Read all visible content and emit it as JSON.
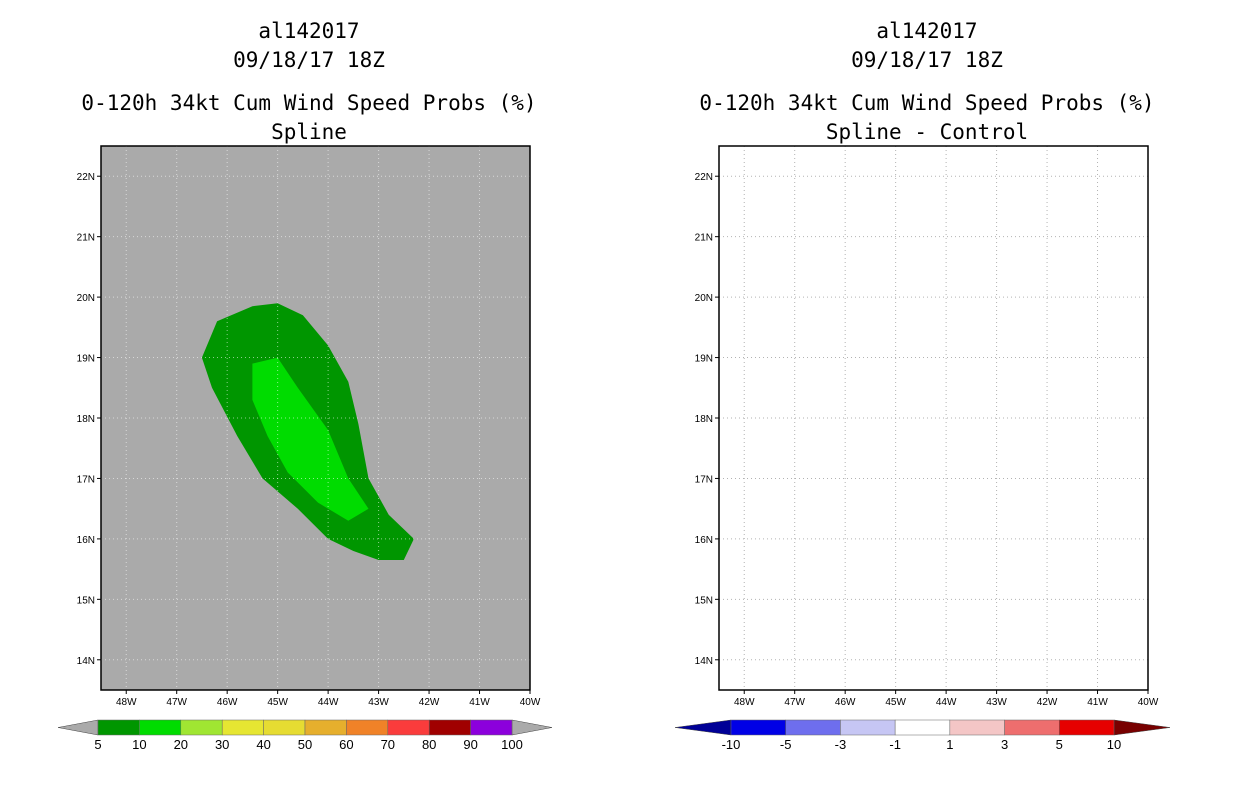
{
  "chart_data": [
    {
      "type": "filled-contour-map",
      "storm_id": "al142017",
      "datetime": "09/18/17 18Z",
      "title": "0-120h 34kt Cum Wind Speed Probs (%)",
      "subtitle": "Spline",
      "background_color": "#aaaaaa",
      "x_ticks": [
        "48W",
        "47W",
        "46W",
        "45W",
        "44W",
        "43W",
        "42W",
        "41W",
        "40W"
      ],
      "y_ticks": [
        "22N",
        "21N",
        "20N",
        "19N",
        "18N",
        "17N",
        "16N",
        "15N",
        "14N"
      ],
      "lon_range": [
        -48.5,
        -40
      ],
      "lat_range": [
        13.5,
        22.5
      ],
      "grid": true,
      "contours": [
        {
          "level": "5-10%",
          "color": "#009600",
          "lonlat": [
            [
              -46.2,
              19.6
            ],
            [
              -45.5,
              19.85
            ],
            [
              -45.0,
              19.9
            ],
            [
              -44.5,
              19.7
            ],
            [
              -44.0,
              19.2
            ],
            [
              -43.6,
              18.6
            ],
            [
              -43.4,
              17.9
            ],
            [
              -43.2,
              17.0
            ],
            [
              -42.8,
              16.4
            ],
            [
              -42.3,
              16.0
            ],
            [
              -42.5,
              15.65
            ],
            [
              -43.0,
              15.65
            ],
            [
              -43.5,
              15.8
            ],
            [
              -44.0,
              16.0
            ],
            [
              -44.6,
              16.5
            ],
            [
              -45.3,
              17.0
            ],
            [
              -45.8,
              17.7
            ],
            [
              -46.3,
              18.5
            ],
            [
              -46.5,
              19.0
            ]
          ]
        },
        {
          "level": "10-20%",
          "color": "#00dc00",
          "lonlat": [
            [
              -45.0,
              19.0
            ],
            [
              -44.6,
              18.5
            ],
            [
              -44.0,
              17.8
            ],
            [
              -43.6,
              17.0
            ],
            [
              -43.2,
              16.5
            ],
            [
              -43.6,
              16.3
            ],
            [
              -44.2,
              16.6
            ],
            [
              -44.8,
              17.1
            ],
            [
              -45.2,
              17.7
            ],
            [
              -45.5,
              18.3
            ],
            [
              -45.5,
              18.9
            ]
          ]
        }
      ],
      "colorbar": {
        "labels": [
          "5",
          "10",
          "20",
          "30",
          "40",
          "50",
          "60",
          "70",
          "80",
          "90",
          "100"
        ],
        "colors": [
          "#009600",
          "#00dc00",
          "#a0e632",
          "#e6e632",
          "#e6dc32",
          "#e6af2d",
          "#f08228",
          "#fa3c3c",
          "#a00000",
          "#8c00dc"
        ],
        "under_color": "#aaaaaa",
        "over_color": "#aaaaaa"
      }
    },
    {
      "type": "filled-contour-map",
      "storm_id": "al142017",
      "datetime": "09/18/17 18Z",
      "title": "0-120h 34kt Cum Wind Speed Probs (%)",
      "subtitle": "Spline - Control",
      "background_color": "#ffffff",
      "x_ticks": [
        "48W",
        "47W",
        "46W",
        "45W",
        "44W",
        "43W",
        "42W",
        "41W",
        "40W"
      ],
      "y_ticks": [
        "22N",
        "21N",
        "20N",
        "19N",
        "18N",
        "17N",
        "16N",
        "15N",
        "14N"
      ],
      "lon_range": [
        -48.5,
        -40
      ],
      "lat_range": [
        13.5,
        22.5
      ],
      "grid": true,
      "contours": [],
      "colorbar": {
        "labels": [
          "-10",
          "-5",
          "-3",
          "-1",
          "1",
          "3",
          "5",
          "10"
        ],
        "colors": [
          "#0000e6",
          "#6e6eee",
          "#c6c6f4",
          "#ffffff",
          "#f4c6c6",
          "#ee6e6e",
          "#e60000"
        ],
        "under_color": "#000096",
        "over_color": "#780000"
      }
    }
  ]
}
